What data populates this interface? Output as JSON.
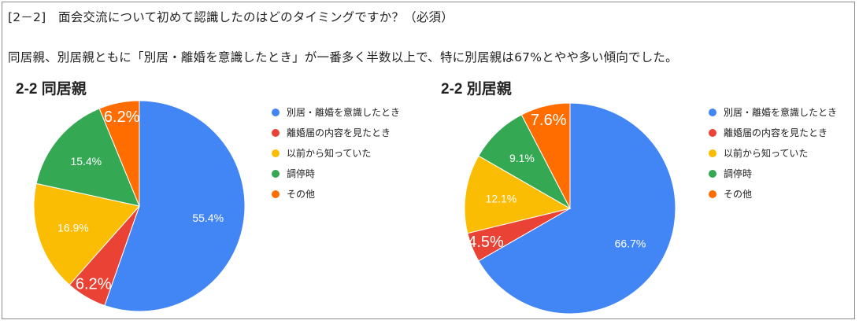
{
  "question": "[2－2]　面会交流について初めて認識したのはどのタイミングですか？（必須）",
  "summary": "同居親、別居親ともに「別居・離婚を意識したとき」が一番多く半数以上で、特に別居親は67%とやや多い傾向でした。",
  "chart_data": [
    {
      "type": "pie",
      "title": "2-2 同居親",
      "categories": [
        "別居・離婚を意識したとき",
        "離婚届の内容を見たとき",
        "以前から知っていた",
        "調停時",
        "その他"
      ],
      "values": [
        55.4,
        6.2,
        16.9,
        15.4,
        6.2
      ],
      "labels": [
        "55.4%",
        "6.2%",
        "16.9%",
        "15.4%",
        "6.2%"
      ],
      "colors": [
        "#4285F4",
        "#EA4335",
        "#FBBC04",
        "#34A853",
        "#FF6D01"
      ],
      "legend_position": "right"
    },
    {
      "type": "pie",
      "title": "2-2 別居親",
      "categories": [
        "別居・離婚を意識したとき",
        "離婚届の内容を見たとき",
        "以前から知っていた",
        "調停時",
        "その他"
      ],
      "values": [
        66.7,
        4.5,
        12.1,
        9.1,
        7.6
      ],
      "labels": [
        "66.7%",
        "4.5%",
        "12.1%",
        "9.1%",
        "7.6%"
      ],
      "colors": [
        "#4285F4",
        "#EA4335",
        "#FBBC04",
        "#34A853",
        "#FF6D01"
      ],
      "legend_position": "right"
    }
  ]
}
